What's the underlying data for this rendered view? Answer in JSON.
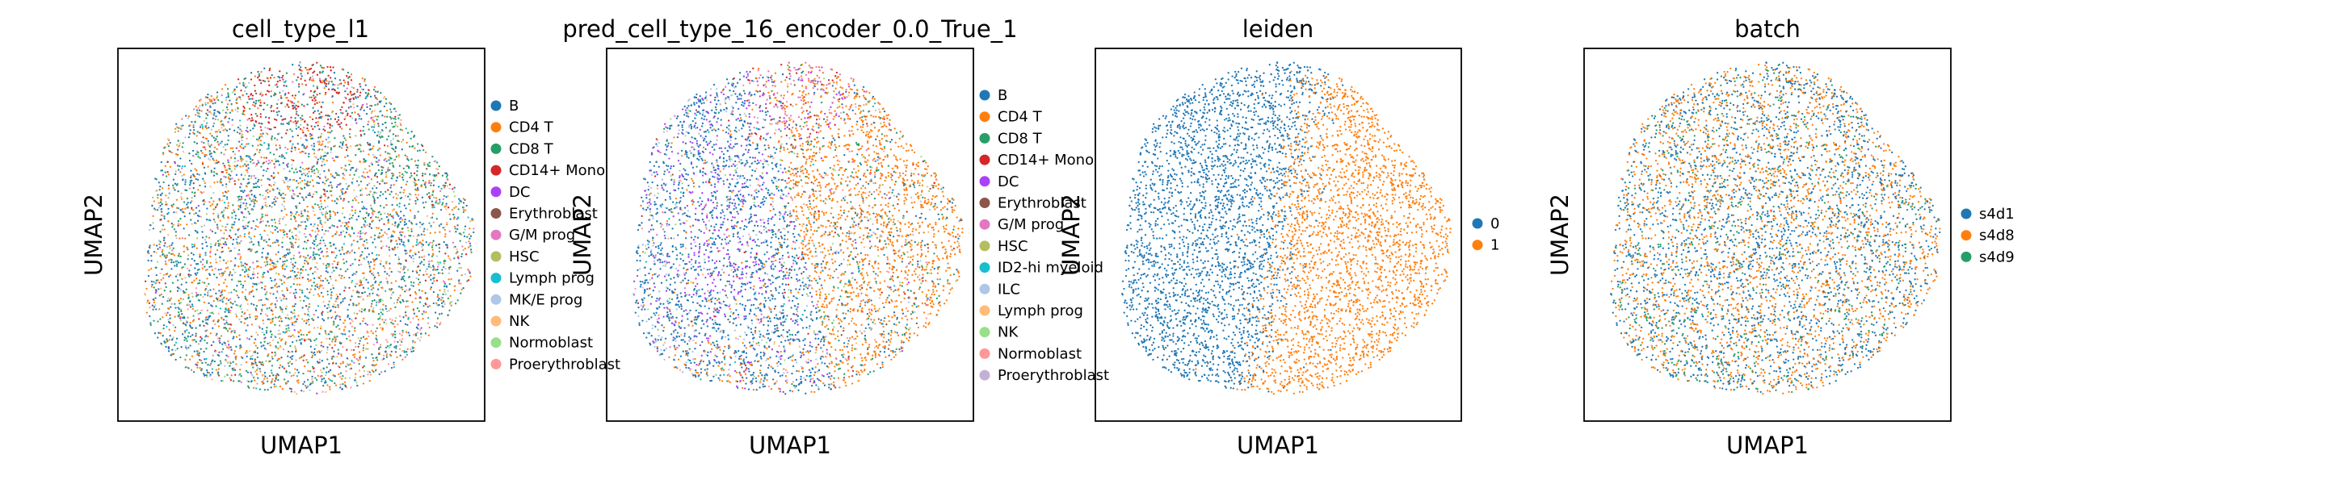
{
  "chart_data": [
    {
      "type": "scatter",
      "title": "cell_type_l1",
      "xlabel": "UMAP1",
      "ylabel": "UMAP2",
      "legend_placement": "right-outside",
      "grid": false,
      "legend": [
        {
          "label": "B",
          "color": "#1f77b4"
        },
        {
          "label": "CD4 T",
          "color": "#ff7f0e"
        },
        {
          "label": "CD8 T",
          "color": "#279e68"
        },
        {
          "label": "CD14+ Mono",
          "color": "#d62728"
        },
        {
          "label": "DC",
          "color": "#aa40fc"
        },
        {
          "label": "Erythroblast",
          "color": "#8c564b"
        },
        {
          "label": "G/M prog",
          "color": "#e377c2"
        },
        {
          "label": "HSC",
          "color": "#b5bd61"
        },
        {
          "label": "Lymph prog",
          "color": "#17becf"
        },
        {
          "label": "MK/E prog",
          "color": "#aec7e8"
        },
        {
          "label": "NK",
          "color": "#ffbb78"
        },
        {
          "label": "Normoblast",
          "color": "#98df8a"
        },
        {
          "label": "Proerythroblast",
          "color": "#ff9896"
        }
      ]
    },
    {
      "type": "scatter",
      "title": "pred_cell_type_16_encoder_0.0_True_1",
      "xlabel": "UMAP1",
      "ylabel": "UMAP2",
      "legend_placement": "right-outside",
      "grid": false,
      "legend": [
        {
          "label": "B",
          "color": "#1f77b4"
        },
        {
          "label": "CD4 T",
          "color": "#ff7f0e"
        },
        {
          "label": "CD8 T",
          "color": "#279e68"
        },
        {
          "label": "CD14+ Mono",
          "color": "#d62728"
        },
        {
          "label": "DC",
          "color": "#aa40fc"
        },
        {
          "label": "Erythroblast",
          "color": "#8c564b"
        },
        {
          "label": "G/M prog",
          "color": "#e377c2"
        },
        {
          "label": "HSC",
          "color": "#b5bd61"
        },
        {
          "label": "ID2-hi myeloid",
          "color": "#17becf"
        },
        {
          "label": "ILC",
          "color": "#aec7e8"
        },
        {
          "label": "Lymph prog",
          "color": "#ffbb78"
        },
        {
          "label": "NK",
          "color": "#98df8a"
        },
        {
          "label": "Normoblast",
          "color": "#ff9896"
        },
        {
          "label": "Proerythroblast",
          "color": "#c5b0d5"
        }
      ]
    },
    {
      "type": "scatter",
      "title": "leiden",
      "xlabel": "UMAP1",
      "ylabel": "UMAP2",
      "legend_placement": "right-outside",
      "grid": false,
      "legend": [
        {
          "label": "0",
          "color": "#1f77b4"
        },
        {
          "label": "1",
          "color": "#ff7f0e"
        }
      ]
    },
    {
      "type": "scatter",
      "title": "batch",
      "xlabel": "UMAP1",
      "ylabel": "UMAP2",
      "legend_placement": "right-outside",
      "grid": false,
      "legend": [
        {
          "label": "s4d1",
          "color": "#1f77b4"
        },
        {
          "label": "s4d8",
          "color": "#ff7f0e"
        },
        {
          "label": "s4d9",
          "color": "#279e68"
        }
      ]
    }
  ]
}
